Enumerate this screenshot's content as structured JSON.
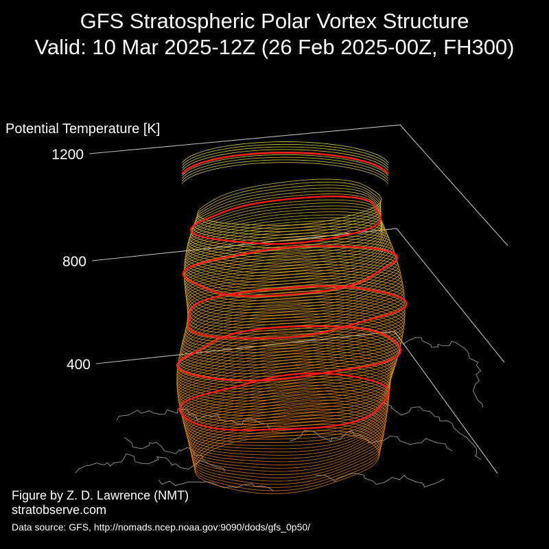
{
  "header": {
    "title": "GFS Stratospheric Polar Vortex Structure",
    "subtitle": "Valid: 10 Mar 2025-12Z  (26 Feb 2025-00Z, FH300)"
  },
  "chart_data": {
    "type": "3d-isosurface",
    "zlabel": "Potential Temperature [K]",
    "z_ticks": [
      400,
      800,
      1200
    ],
    "zlim": [
      250,
      1200
    ],
    "highlighted_levels": [
      450,
      600,
      725,
      850,
      1000,
      1150
    ],
    "colors": {
      "low": "#e07b10",
      "mid": "#d89a20",
      "high": "#e8e050",
      "contour": "#ff1a1a",
      "coastline": "#8a8a8a",
      "axis": "#bdbdbd"
    },
    "basemap": "Northern Hemisphere coastlines"
  },
  "footer": {
    "credit": "Figure by Z. D. Lawrence (NMT)",
    "site": "stratobserve.com",
    "source": "Data source: GFS, http://nomads.ncep.noaa.gov:9090/dods/gfs_0p50/"
  }
}
